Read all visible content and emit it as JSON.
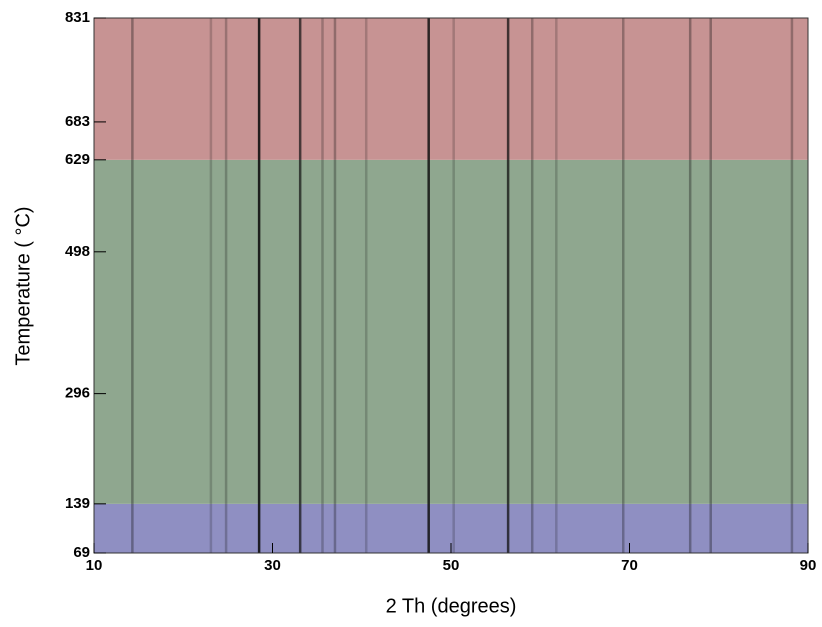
{
  "chart_data": {
    "type": "heatmap",
    "x_label": "2 Th (degrees)",
    "y_label": "Temperature ( °C)",
    "xlim": [
      10,
      90
    ],
    "xticks": [
      10,
      30,
      50,
      70,
      90
    ],
    "ylim": [
      69,
      831
    ],
    "yticks": [
      69,
      139,
      296,
      498,
      629,
      683,
      831
    ],
    "bands": [
      {
        "range": [
          69,
          139
        ],
        "color": "#8f8fc2"
      },
      {
        "range": [
          139,
          629
        ],
        "color": "#8fa78f"
      },
      {
        "range": [
          629,
          831
        ],
        "color": "#c79393"
      }
    ],
    "peaks": {
      "x": [
        14.3,
        23.1,
        24.8,
        28.5,
        33.1,
        35.6,
        37.0,
        40.5,
        47.5,
        50.3,
        56.4,
        59.1,
        61.8,
        69.3,
        76.8,
        79.1,
        88.2
      ],
      "intensity": [
        0.35,
        0.2,
        0.25,
        0.9,
        0.7,
        0.25,
        0.3,
        0.2,
        0.85,
        0.2,
        0.75,
        0.3,
        0.2,
        0.3,
        0.35,
        0.35,
        0.3
      ]
    }
  }
}
